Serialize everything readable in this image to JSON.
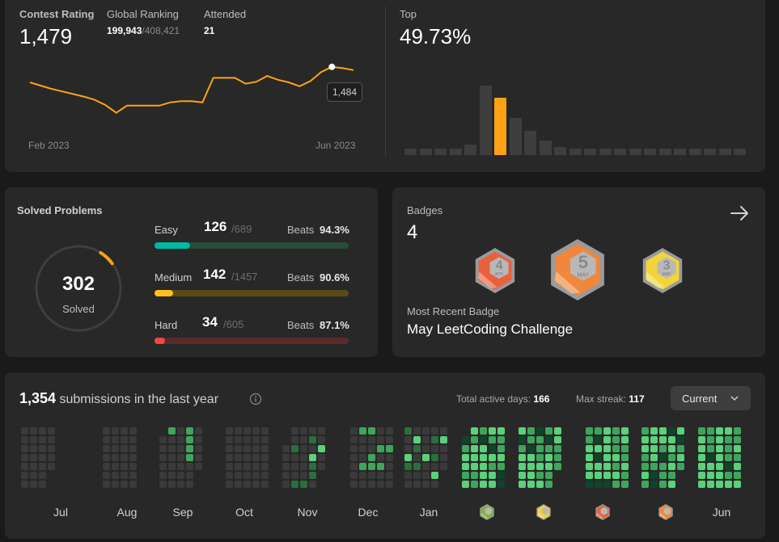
{
  "contest": {
    "rating_label": "Contest Rating",
    "rating_value": "1,479",
    "global_label": "Global Ranking",
    "global_rank": "199,943",
    "global_total": "/408,421",
    "attended_label": "Attended",
    "attended_value": "21",
    "x_start": "Feb 2023",
    "x_end": "Jun 2023",
    "tooltip": "1,484",
    "top_label": "Top",
    "top_value": "49.73%"
  },
  "chart_data": [
    {
      "type": "line",
      "title": "",
      "xlabel": "",
      "ylabel": "",
      "x_tick_labels": [
        "Feb 2023",
        "Jun 2023"
      ],
      "series": [
        {
          "values": [
            1460,
            1455,
            1450,
            1446,
            1442,
            1438,
            1433,
            1425,
            1413,
            1424,
            1424,
            1424,
            1424,
            1429,
            1431,
            1431,
            1429,
            1467,
            1467,
            1467,
            1458,
            1461,
            1470,
            1464,
            1460,
            1454,
            1462,
            1476,
            1484,
            1482,
            1479
          ]
        }
      ],
      "highlight_value": 1484,
      "color": "#ffa116"
    },
    {
      "type": "bar",
      "title": "",
      "values": [
        1,
        1,
        1,
        2,
        5,
        34,
        28,
        18,
        12,
        7,
        4,
        2,
        2,
        2,
        2,
        2,
        2,
        2,
        2,
        2,
        2,
        2,
        2
      ],
      "highlight_index": 6,
      "bar_color": "#3e3e3e",
      "highlight_color": "#ffa116"
    }
  ],
  "solved": {
    "title": "Solved Problems",
    "total": "302",
    "total_label": "Solved",
    "rows": [
      {
        "name": "Easy",
        "count": "126",
        "total": "/689",
        "beats_label": "Beats",
        "beats": "94.3%",
        "fraction": 0.183,
        "color": "#00b8a3",
        "track": "#2a4a3a"
      },
      {
        "name": "Medium",
        "count": "142",
        "total": "/1457",
        "beats_label": "Beats",
        "beats": "90.6%",
        "fraction": 0.097,
        "color": "#ffc01e",
        "track": "#5a4a18"
      },
      {
        "name": "Hard",
        "count": "34",
        "total": "/605",
        "beats_label": "Beats",
        "beats": "87.1%",
        "fraction": 0.056,
        "color": "#ef4743",
        "track": "#5a2a2a"
      }
    ]
  },
  "badges": {
    "title": "Badges",
    "count": "4",
    "items": [
      {
        "month_num": "4",
        "month": "APR",
        "color": "#e8613c"
      },
      {
        "month_num": "5",
        "month": "MAY",
        "color": "#f0873a"
      },
      {
        "month_num": "3",
        "month": "MAR",
        "color": "#f2d43a"
      }
    ],
    "recent_label": "Most Recent Badge",
    "recent_name": "May LeetCoding Challenge"
  },
  "submissions": {
    "count": "1,354",
    "suffix": "submissions in the last year",
    "active_label": "Total active days:",
    "active_value": "166",
    "streak_label": "Max streak:",
    "streak_value": "117",
    "dropdown": "Current",
    "months": [
      "Jul",
      "Aug",
      "Sep",
      "Oct",
      "Nov",
      "Dec",
      "Jan",
      "Feb",
      "Mar",
      "Apr",
      "May",
      "Jun"
    ]
  },
  "colors": {
    "accent": "#ffa116",
    "card": "#282828",
    "bg": "#1a1a1a",
    "heat_empty": "#3a3a3a",
    "heat_1": "#0e4429",
    "heat_2": "#2c6e3f",
    "heat_3": "#3fa55c",
    "heat_4": "#5ad17a"
  }
}
